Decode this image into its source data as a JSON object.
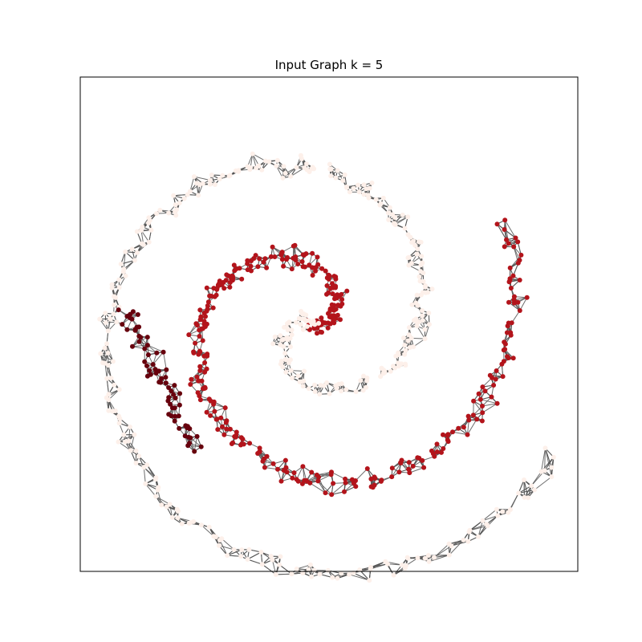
{
  "chart_data": {
    "type": "scatter",
    "title": "Input Graph k = 5",
    "xlabel": "",
    "ylabel": "",
    "xlim": [
      -20,
      20
    ],
    "ylim": [
      -20,
      20
    ],
    "axis_ticks": false,
    "grid": false,
    "legend": "none",
    "k": 5,
    "series": [
      {
        "color": "#b3141b",
        "kind": "outer-red-arm",
        "t_range": [
          95,
          250
        ],
        "center": [
          -1.5,
          0.1
        ],
        "rotation_deg": 0,
        "count": 240
      },
      {
        "color": "#fdf0ea",
        "kind": "inner-light-arm",
        "t_range": [
          95,
          330
        ],
        "center": [
          -1.5,
          0.1
        ],
        "rotation_deg": 180,
        "count": 320
      },
      {
        "color": "#b3141b",
        "kind": "inner-red-arm",
        "t_range": [
          -20,
          100
        ],
        "center": [
          -1.5,
          0.1
        ],
        "rotation_deg": 0,
        "count": 130
      },
      {
        "color": "#fdf0ea",
        "kind": "inner-light-tail",
        "t_range": [
          -30,
          95
        ],
        "center": [
          -1.5,
          0.1
        ],
        "rotation_deg": 180,
        "count": 80
      },
      {
        "color": "#67000d",
        "kind": "dark-tail",
        "x_range": [
          -16.5,
          -10.8
        ],
        "y_range": [
          -10,
          1.5
        ],
        "count": 70
      }
    ],
    "edge_color": "#555555"
  }
}
